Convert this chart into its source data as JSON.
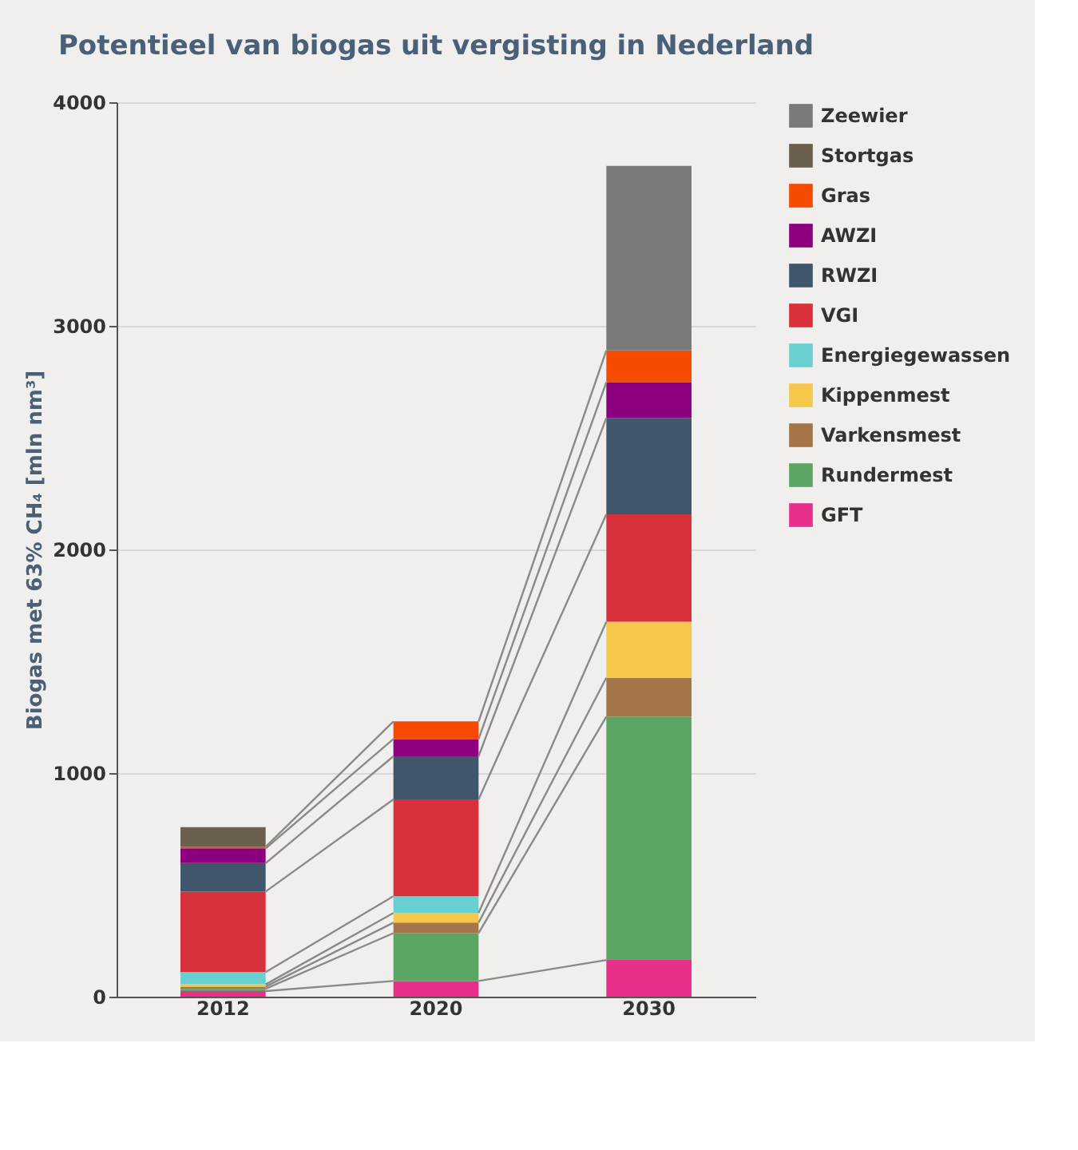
{
  "chart_data": {
    "type": "bar",
    "stacked": true,
    "title": "Potentieel van biogas uit vergisting in Nederland",
    "ylabel": "Biogas met 63% CH₄ [mln nm³]",
    "categories": [
      "2012",
      "2020",
      "2030"
    ],
    "ylim": [
      0,
      4000
    ],
    "yticks": [
      0,
      {
        "value": 1000,
        "label": "1000"
      },
      {
        "value": 2000,
        "label": "2000"
      },
      {
        "value": 3000,
        "label": "3000"
      },
      {
        "value": 4000,
        "label": "4000"
      }
    ],
    "grid": "y",
    "legend": "right",
    "series": [
      {
        "name": "GFT",
        "color": "#e8308a",
        "values": [
          25,
          70,
          164
        ]
      },
      {
        "name": "Rundermest",
        "color": "#5ba565",
        "values": [
          10,
          214,
          1088
        ]
      },
      {
        "name": "Varkensmest",
        "color": "#a5754a",
        "values": [
          10,
          47,
          174
        ]
      },
      {
        "name": "Kippenmest",
        "color": "#f5c84c",
        "values": [
          10,
          43,
          251
        ]
      },
      {
        "name": "Energiegewassen",
        "color": "#68d0d0",
        "values": [
          55,
          75,
          null
        ]
      },
      {
        "name": "VGI",
        "color": "#d9313c",
        "values": [
          360,
          433,
          480
        ]
      },
      {
        "name": "RWZI",
        "color": "#40566b",
        "values": [
          127,
          193,
          431
        ]
      },
      {
        "name": "AWZI",
        "color": "#8c0080",
        "values": [
          66,
          77,
          160
        ]
      },
      {
        "name": "Gras",
        "color": "#f54a00",
        "values": [
          7,
          79,
          142
        ]
      },
      {
        "name": "Stortgas",
        "color": "#6b5f50",
        "values": [
          88,
          null,
          null
        ]
      },
      {
        "name": "Zeewier",
        "color": "#7a7b77",
        "values": [
          null,
          null,
          825
        ]
      }
    ]
  }
}
